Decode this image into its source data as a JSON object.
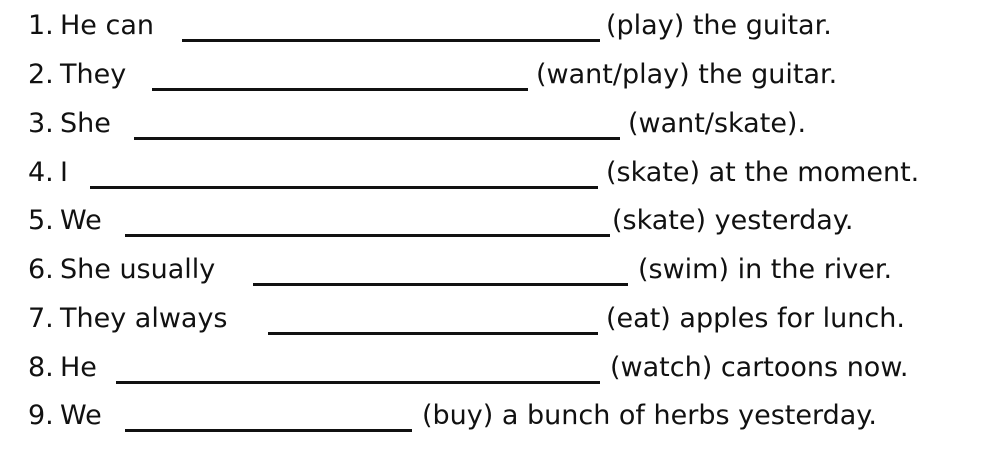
{
  "worksheet": {
    "items": [
      {
        "number": "1.",
        "subject": "He can",
        "hint": "(play) the guitar."
      },
      {
        "number": "2.",
        "subject": "They",
        "hint": "(want/play) the guitar."
      },
      {
        "number": "3.",
        "subject": "She",
        "hint": "(want/skate)."
      },
      {
        "number": "4.",
        "subject": "I",
        "hint": "(skate) at the moment."
      },
      {
        "number": "5.",
        "subject": "We",
        "hint": "(skate) yesterday."
      },
      {
        "number": "6.",
        "subject": "She usually",
        "hint": "(swim) in the river."
      },
      {
        "number": "7.",
        "subject": "They always",
        "hint": "(eat) apples for lunch."
      },
      {
        "number": "8.",
        "subject": "He",
        "hint": "(watch) cartoons now."
      },
      {
        "number": "9.",
        "subject": "We",
        "hint": "(buy) a bunch of herbs yesterday."
      }
    ]
  }
}
